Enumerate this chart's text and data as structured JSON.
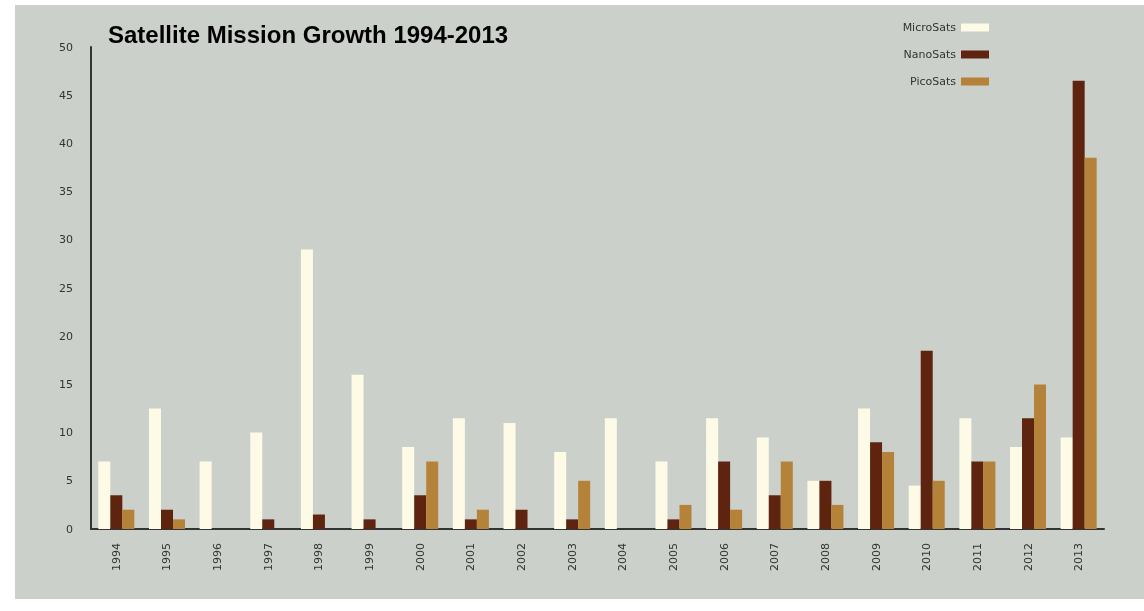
{
  "chart_data": {
    "type": "bar",
    "title": "Satellite Mission Growth 1994-2013",
    "categories": [
      "1994",
      "1995",
      "1996",
      "1997",
      "1998",
      "1999",
      "2000",
      "2001",
      "2002",
      "2003",
      "2004",
      "2005",
      "2006",
      "2007",
      "2008",
      "2009",
      "2010",
      "2011",
      "2012",
      "2013"
    ],
    "series": [
      {
        "name": "MicroSats",
        "color": "#fdfbe6",
        "values": [
          7,
          12.5,
          7,
          10,
          29,
          16,
          8.5,
          11.5,
          11,
          8,
          11.5,
          7,
          11.5,
          9.5,
          5,
          12.5,
          4.5,
          11.5,
          8.5,
          9.5
        ]
      },
      {
        "name": "NanoSats",
        "color": "#5e2410",
        "values": [
          3.5,
          2,
          0,
          1,
          1.5,
          1,
          3.5,
          1,
          2,
          1,
          0,
          1,
          7,
          3.5,
          5,
          9,
          18.5,
          7,
          11.5,
          46.5
        ]
      },
      {
        "name": "PicoSats",
        "color": "#b5823a",
        "values": [
          2,
          1,
          0,
          0,
          0,
          0,
          7,
          2,
          0,
          5,
          0,
          2.5,
          2,
          7,
          2.5,
          8,
          5,
          7,
          15,
          38.5
        ]
      }
    ],
    "ylim": [
      0,
      50
    ],
    "yticks": [
      0,
      5,
      10,
      15,
      20,
      25,
      30,
      35,
      40,
      45,
      50
    ],
    "grid": false,
    "legend": "top right"
  }
}
